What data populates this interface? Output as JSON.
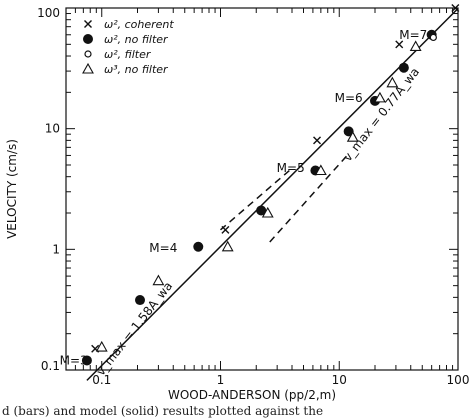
{
  "chart_data": {
    "type": "scatter",
    "xlabel": "WOOD-ANDERSON (pp/2,m)",
    "ylabel": "VELOCITY (cm/s)",
    "xscale": "log",
    "yscale": "log",
    "xlim": [
      0.05,
      100
    ],
    "ylim": [
      0.1,
      100
    ],
    "x_ticks": [
      "0.1",
      "1",
      "10",
      "100"
    ],
    "y_ticks": [
      "0.1",
      "1",
      "10",
      "100"
    ],
    "grid": false,
    "legend_position": "top-left",
    "legend": [
      {
        "symbol": "cross",
        "label": "ω², coherent"
      },
      {
        "symbol": "filled-circle",
        "label": "ω², no filter"
      },
      {
        "symbol": "open-circle",
        "label": "ω², filter"
      },
      {
        "symbol": "triangle",
        "label": "ω³, no filter"
      }
    ],
    "series": [
      {
        "symbol": "cross",
        "points": [
          [
            0.088,
            0.15
          ],
          [
            1.1,
            1.45
          ],
          [
            6.5,
            8.0
          ],
          [
            32,
            50
          ],
          [
            95,
            100
          ]
        ]
      },
      {
        "symbol": "filled-circle",
        "points": [
          [
            0.075,
            0.12
          ],
          [
            0.21,
            0.38
          ],
          [
            0.65,
            1.05
          ],
          [
            2.2,
            2.1
          ],
          [
            6.3,
            4.5
          ],
          [
            12,
            9.5
          ],
          [
            20,
            17
          ],
          [
            35,
            32
          ],
          [
            60,
            60
          ]
        ]
      },
      {
        "symbol": "open-circle",
        "points": [
          [
            62,
            57
          ]
        ]
      },
      {
        "symbol": "triangle",
        "points": [
          [
            0.1,
            0.155
          ],
          [
            0.3,
            0.55
          ],
          [
            1.15,
            1.05
          ],
          [
            2.5,
            2.0
          ],
          [
            7.0,
            4.5
          ],
          [
            13,
            8.5
          ],
          [
            22,
            18
          ],
          [
            28,
            24
          ],
          [
            44,
            48
          ]
        ]
      }
    ],
    "fit_lines": [
      {
        "style": "solid",
        "x": [
          0.075,
          100
        ],
        "y": [
          0.082,
          99
        ],
        "label": "v_max = 1.58A_wa"
      },
      {
        "style": "dashed",
        "x": [
          1,
          3.8
        ],
        "y": [
          1.45,
          4.5
        ],
        "label": ""
      },
      {
        "style": "dashed",
        "x": [
          2.6,
          12
        ],
        "y": [
          1.15,
          6.2
        ],
        "label": "v_max = 0.77A_wa"
      }
    ],
    "magnitude_labels": [
      {
        "text": "M=3",
        "x": 0.058,
        "y": 0.12
      },
      {
        "text": "M=4",
        "x": 0.33,
        "y": 1.03
      },
      {
        "text": "M=5",
        "x": 3.9,
        "y": 4.7
      },
      {
        "text": "M=6",
        "x": 12,
        "y": 18
      },
      {
        "text": "M=7",
        "x": 42,
        "y": 60
      }
    ],
    "caption": "d (bars) and model (solid) results plotted against the"
  }
}
